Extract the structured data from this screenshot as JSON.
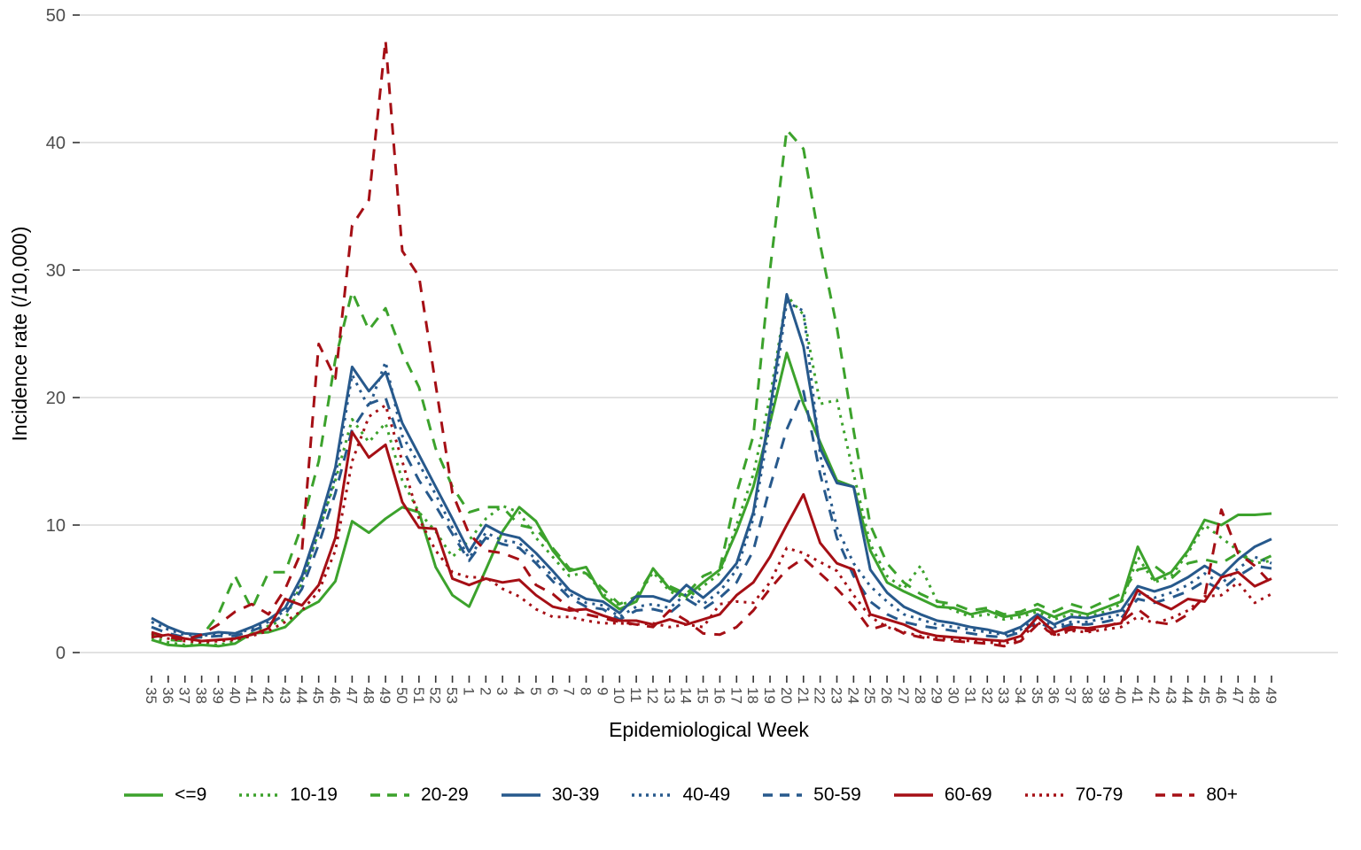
{
  "chart_data": {
    "type": "line",
    "title": "",
    "xlabel": "Epidemiological Week",
    "ylabel": "Incidence rate (/10,000)",
    "ylim": [
      0,
      50
    ],
    "yticks": [
      0,
      10,
      20,
      30,
      40,
      50
    ],
    "grid": "horizontal-major-only",
    "legend_position": "bottom",
    "colors": {
      "green": "#3CA22C",
      "blue": "#27598C",
      "red": "#A50F15",
      "gridline": "#D9D9D9",
      "tick_text": "#4D4D4D",
      "axis_title": "#000000"
    },
    "x_labels": [
      "35",
      "36",
      "37",
      "38",
      "39",
      "40",
      "41",
      "42",
      "43",
      "44",
      "45",
      "46",
      "47",
      "48",
      "49",
      "50",
      "51",
      "52",
      "53",
      "1",
      "2",
      "3",
      "4",
      "5",
      "6",
      "7",
      "8",
      "9",
      "10",
      "11",
      "12",
      "13",
      "14",
      "15",
      "16",
      "17",
      "18",
      "19",
      "20",
      "21",
      "22",
      "23",
      "24",
      "25",
      "26",
      "27",
      "28",
      "29",
      "30",
      "31",
      "32",
      "33",
      "34",
      "35",
      "36",
      "37",
      "38",
      "39",
      "40",
      "41",
      "42",
      "43",
      "44",
      "45",
      "46",
      "47",
      "48",
      "49"
    ],
    "series": [
      {
        "name": "<=9",
        "color": "#3CA22C",
        "dash": "solid",
        "values": [
          1.0,
          0.6,
          0.5,
          0.6,
          0.5,
          0.7,
          1.5,
          1.6,
          2.0,
          3.3,
          4.0,
          5.6,
          10.3,
          9.4,
          10.5,
          11.4,
          11.0,
          6.7,
          4.5,
          3.6,
          6.5,
          9.5,
          11.4,
          10.3,
          8.0,
          6.4,
          6.7,
          4.4,
          3.4,
          4.0,
          6.6,
          5.0,
          4.4,
          5.5,
          6.5,
          9.5,
          13.0,
          18.0,
          23.5,
          19.5,
          16.5,
          13.5,
          13.0,
          8.0,
          5.5,
          4.8,
          4.2,
          3.6,
          3.5,
          3.0,
          3.3,
          2.8,
          3.0,
          3.4,
          2.8,
          3.3,
          3.0,
          3.5,
          4.0,
          8.3,
          5.7,
          6.3,
          8.0,
          10.4,
          10.0,
          10.8,
          10.8,
          10.9
        ]
      },
      {
        "name": "10-19",
        "color": "#3CA22C",
        "dash": "dotted",
        "values": [
          1.2,
          0.8,
          0.6,
          0.7,
          0.6,
          0.9,
          1.4,
          2.1,
          2.6,
          5.5,
          9.5,
          13.5,
          18.3,
          16.5,
          18.0,
          13.5,
          11.0,
          9.5,
          7.5,
          8.8,
          10.5,
          11.5,
          11.0,
          9.0,
          7.5,
          6.0,
          6.3,
          4.6,
          3.7,
          4.2,
          6.3,
          4.8,
          4.2,
          5.2,
          6.2,
          10.0,
          14.0,
          20.0,
          28.0,
          26.5,
          19.5,
          19.8,
          14.0,
          8.5,
          6.0,
          5.0,
          6.8,
          4.0,
          3.3,
          2.8,
          3.0,
          2.6,
          2.8,
          3.2,
          2.6,
          3.0,
          2.8,
          3.2,
          3.8,
          7.5,
          5.5,
          6.0,
          7.8,
          10.0,
          9.0,
          8.0,
          7.0,
          7.2
        ]
      },
      {
        "name": "20-29",
        "color": "#3CA22C",
        "dash": "dashed",
        "values": [
          1.5,
          1.0,
          0.9,
          1.3,
          3.0,
          6.0,
          3.4,
          6.3,
          6.3,
          10.0,
          15.0,
          23.0,
          28.3,
          25.3,
          27.0,
          23.5,
          20.8,
          16.0,
          13.0,
          11.0,
          11.4,
          11.4,
          10.0,
          9.7,
          8.2,
          6.6,
          6.2,
          5.0,
          3.8,
          4.4,
          6.5,
          5.2,
          4.6,
          6.0,
          6.6,
          12.5,
          17.0,
          30.0,
          41.0,
          39.5,
          32.0,
          25.5,
          17.4,
          10.0,
          7.0,
          5.5,
          4.6,
          4.0,
          3.8,
          3.3,
          3.5,
          3.0,
          3.2,
          3.8,
          3.2,
          3.8,
          3.4,
          4.0,
          4.6,
          6.5,
          6.8,
          5.8,
          7.0,
          7.3,
          7.0,
          7.8,
          7.0,
          7.6
        ]
      },
      {
        "name": "30-39",
        "color": "#27598C",
        "dash": "solid",
        "values": [
          2.7,
          2.0,
          1.5,
          1.4,
          1.6,
          1.5,
          2.0,
          2.6,
          3.5,
          6.0,
          10.0,
          14.5,
          22.4,
          20.5,
          22.0,
          18.0,
          15.5,
          13.0,
          10.5,
          7.9,
          10.0,
          9.3,
          9.0,
          7.8,
          6.4,
          4.9,
          4.2,
          4.0,
          3.1,
          4.4,
          4.4,
          4.0,
          5.3,
          4.3,
          5.4,
          7.0,
          11.0,
          19.0,
          28.1,
          24.0,
          16.0,
          13.3,
          13.0,
          6.5,
          4.7,
          3.6,
          3.0,
          2.5,
          2.3,
          2.0,
          1.8,
          1.5,
          2.0,
          3.0,
          2.2,
          2.8,
          2.7,
          3.0,
          3.3,
          5.2,
          4.8,
          5.2,
          5.9,
          6.8,
          6.0,
          7.3,
          8.3,
          8.9
        ]
      },
      {
        "name": "40-49",
        "color": "#27598C",
        "dash": "dotted",
        "values": [
          2.4,
          1.8,
          1.4,
          1.3,
          1.5,
          1.4,
          1.9,
          2.4,
          3.3,
          5.6,
          9.4,
          13.8,
          21.8,
          19.2,
          22.8,
          17.0,
          14.8,
          12.4,
          9.8,
          7.4,
          9.4,
          8.8,
          8.6,
          7.3,
          6.0,
          4.6,
          3.9,
          3.7,
          2.8,
          3.6,
          3.8,
          3.5,
          4.6,
          3.8,
          4.8,
          6.5,
          10.5,
          18.0,
          27.5,
          26.8,
          15.5,
          9.8,
          7.0,
          5.2,
          4.0,
          3.0,
          2.6,
          2.2,
          2.0,
          1.8,
          1.6,
          1.4,
          1.8,
          2.7,
          2.0,
          2.4,
          2.4,
          2.7,
          3.0,
          4.6,
          4.3,
          4.7,
          5.3,
          6.2,
          5.4,
          6.6,
          7.5,
          7.0
        ]
      },
      {
        "name": "50-59",
        "color": "#27598C",
        "dash": "dashed",
        "values": [
          2.0,
          1.5,
          1.2,
          1.2,
          1.3,
          1.3,
          1.7,
          2.2,
          3.0,
          5.0,
          8.5,
          12.5,
          17.5,
          19.5,
          20.0,
          16.0,
          13.5,
          11.5,
          9.3,
          7.2,
          9.0,
          8.5,
          8.2,
          7.0,
          5.6,
          4.3,
          3.6,
          3.4,
          2.6,
          3.3,
          3.4,
          3.1,
          4.2,
          3.4,
          4.3,
          5.5,
          8.0,
          13.0,
          17.5,
          20.5,
          14.0,
          9.0,
          6.0,
          4.0,
          3.0,
          2.4,
          2.1,
          1.9,
          1.7,
          1.5,
          1.3,
          1.2,
          1.6,
          2.4,
          1.8,
          2.2,
          2.2,
          2.4,
          2.7,
          4.2,
          3.9,
          4.3,
          4.8,
          5.6,
          4.9,
          6.0,
          6.8,
          6.6
        ]
      },
      {
        "name": "60-69",
        "color": "#A50F15",
        "dash": "solid",
        "values": [
          1.2,
          1.4,
          1.1,
          0.9,
          1.0,
          1.1,
          1.4,
          1.9,
          4.2,
          3.7,
          5.3,
          9.0,
          17.3,
          15.3,
          16.3,
          11.8,
          9.8,
          9.7,
          5.8,
          5.3,
          5.8,
          5.5,
          5.7,
          4.5,
          3.6,
          3.3,
          3.4,
          2.9,
          2.5,
          2.5,
          2.2,
          2.6,
          2.2,
          2.6,
          3.0,
          4.5,
          5.5,
          7.5,
          10.0,
          12.4,
          8.6,
          7.0,
          6.5,
          3.0,
          2.6,
          2.2,
          1.6,
          1.3,
          1.2,
          1.1,
          1.0,
          0.9,
          1.3,
          2.8,
          1.6,
          2.0,
          1.9,
          2.1,
          2.3,
          4.9,
          4.0,
          3.4,
          4.2,
          4.0,
          5.9,
          6.3,
          5.2,
          5.8
        ]
      },
      {
        "name": "70-79",
        "color": "#A50F15",
        "dash": "dotted",
        "values": [
          1.4,
          1.1,
          0.9,
          0.8,
          0.9,
          1.0,
          1.3,
          1.7,
          2.4,
          3.3,
          4.8,
          8.0,
          15.0,
          18.5,
          19.4,
          15.0,
          10.5,
          8.0,
          6.3,
          5.9,
          5.9,
          5.0,
          4.4,
          3.4,
          2.8,
          2.8,
          2.5,
          2.3,
          2.3,
          2.2,
          2.3,
          2.0,
          2.2,
          2.0,
          3.8,
          4.0,
          3.9,
          5.5,
          8.2,
          7.8,
          7.1,
          6.4,
          4.5,
          2.8,
          2.0,
          1.6,
          1.3,
          1.1,
          1.0,
          0.9,
          0.8,
          0.7,
          1.1,
          2.4,
          1.3,
          1.7,
          1.6,
          1.8,
          2.0,
          2.8,
          2.3,
          2.7,
          3.3,
          4.4,
          4.5,
          5.5,
          3.9,
          4.6
        ]
      },
      {
        "name": "80+",
        "color": "#A50F15",
        "dash": "dashed",
        "values": [
          1.6,
          1.2,
          1.0,
          1.4,
          2.2,
          3.2,
          3.8,
          3.0,
          5.0,
          8.0,
          24.2,
          21.5,
          33.5,
          35.5,
          48.0,
          31.5,
          29.5,
          21.0,
          12.5,
          9.3,
          8.0,
          7.8,
          7.3,
          5.3,
          4.6,
          3.5,
          3.0,
          2.7,
          2.4,
          2.2,
          2.0,
          3.3,
          2.5,
          1.5,
          1.4,
          2.0,
          3.3,
          5.0,
          6.5,
          7.4,
          6.2,
          5.0,
          3.6,
          1.8,
          2.2,
          1.5,
          1.2,
          1.0,
          0.9,
          0.8,
          0.7,
          0.5,
          0.9,
          2.2,
          1.4,
          1.8,
          1.7,
          2.0,
          2.4,
          3.4,
          2.4,
          2.2,
          3.0,
          4.4,
          11.2,
          7.8,
          6.8,
          5.4
        ]
      }
    ]
  }
}
